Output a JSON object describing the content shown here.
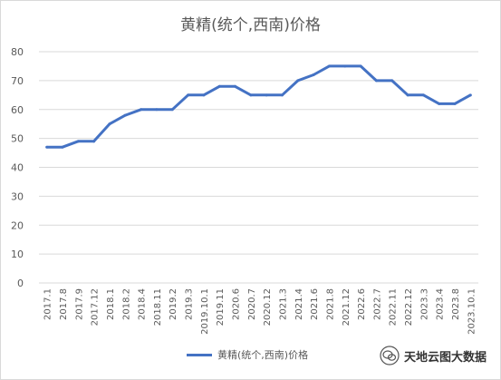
{
  "chart_data": {
    "type": "line",
    "title": "黄精(统个,西南)价格",
    "ylim": [
      0,
      80
    ],
    "yticks": [
      0,
      10,
      20,
      30,
      40,
      50,
      60,
      70,
      80
    ],
    "grid": "horizontal",
    "legend_placement": "bottom",
    "categories": [
      "2017.1",
      "2017.8",
      "2017.9",
      "2017.12",
      "2018.1",
      "2018.2",
      "2018.4",
      "2018.11",
      "2019.2",
      "2019.3",
      "2019.10.1",
      "2019.11",
      "2020.6",
      "2020.7",
      "2020.12",
      "2021.3",
      "2021.4",
      "2021.6",
      "2021.8",
      "2021.12",
      "2022.6",
      "2022.7",
      "2022.11",
      "2022.12",
      "2023.3",
      "2023.4",
      "2023.8",
      "2023.10.1"
    ],
    "series": [
      {
        "name": "黄精(统个,西南)价格",
        "color": "#4472c4",
        "values": [
          47,
          47,
          49,
          49,
          55,
          58,
          60,
          60,
          60,
          65,
          65,
          68,
          68,
          65,
          65,
          65,
          70,
          72,
          75,
          75,
          75,
          70,
          70,
          65,
          65,
          62,
          62,
          65
        ]
      }
    ]
  },
  "watermark": {
    "icon": "wechat-icon",
    "text": "天地云图大数据"
  },
  "colors": {
    "line": "#4472c4",
    "grid": "#d9d9d9",
    "text": "#595959"
  }
}
